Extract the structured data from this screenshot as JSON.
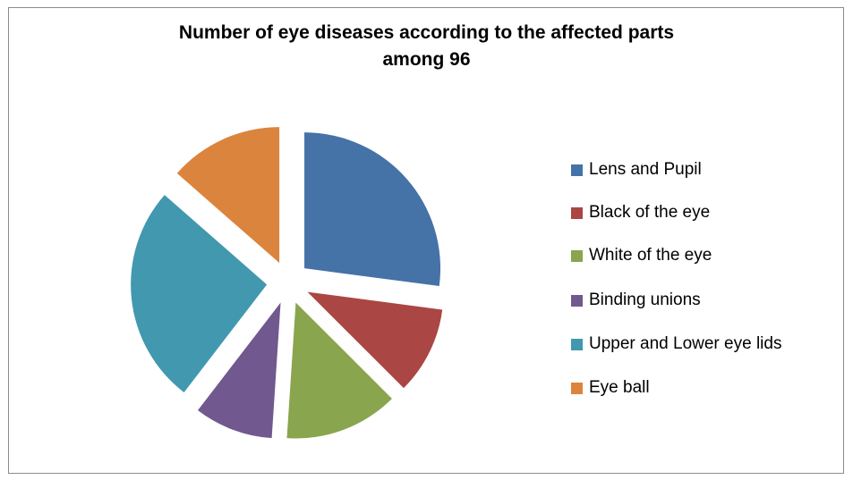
{
  "chart_data": {
    "type": "pie",
    "title_lines": [
      "Number of eye diseases according to the affected parts",
      "among 96"
    ],
    "slices": [
      {
        "name": "Lens and Pupil",
        "value": 26,
        "color": "#4572A7"
      },
      {
        "name": "Black of the eye",
        "value": 10,
        "color": "#AA4643"
      },
      {
        "name": "White of the eye",
        "value": 13,
        "color": "#89A54E"
      },
      {
        "name": "Binding unions",
        "value": 9,
        "color": "#71588F"
      },
      {
        "name": "Upper and Lower eye lids",
        "value": 25,
        "color": "#4198AF"
      },
      {
        "name": "Eye ball",
        "value": 13,
        "color": "#DB843D"
      }
    ],
    "exploded": true,
    "legend_position": "right"
  }
}
